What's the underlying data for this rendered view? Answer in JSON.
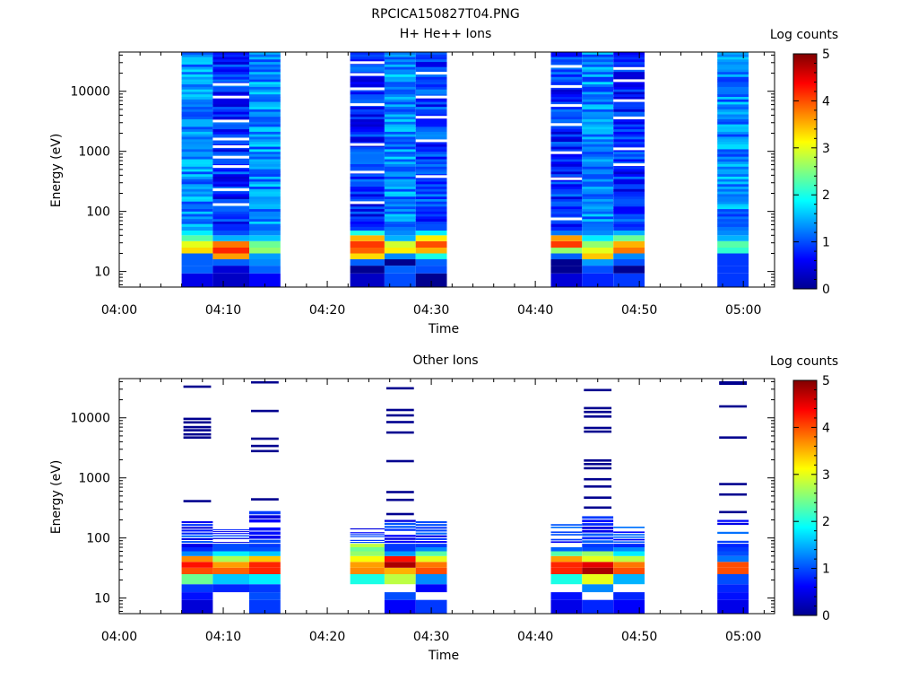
{
  "figure": {
    "title": "RPCICA150827T04.PNG"
  },
  "colorbar": {
    "label": "Log counts",
    "ticks": [
      "0",
      "1",
      "2",
      "3",
      "4",
      "5"
    ],
    "stops": [
      "#00008f",
      "#0000ff",
      "#0080ff",
      "#00ffff",
      "#80ff80",
      "#ffff00",
      "#ff8000",
      "#ff0000",
      "#800000"
    ]
  },
  "chart_data": [
    {
      "type": "heatmap",
      "title": "H+ He++ Ions",
      "xlabel": "Time",
      "ylabel": "Energy (eV)",
      "x_ticks": [
        "04:00",
        "04:10",
        "04:20",
        "04:30",
        "04:40",
        "04:50",
        "05:00"
      ],
      "xlim_minutes": [
        0,
        63
      ],
      "y_scale": "log",
      "ylim": [
        5.5,
        45000
      ],
      "y_ticks": [
        "10",
        "100",
        "1000",
        "10000"
      ],
      "clim": [
        0,
        5
      ],
      "time_bins": [
        {
          "start": 6,
          "end": 9,
          "low": [
            0.5,
            1.1,
            1.1,
            1.1,
            3.3,
            3.0,
            2.3,
            1.8,
            1.4
          ],
          "high": 1.3,
          "gaps": []
        },
        {
          "start": 9,
          "end": 12.5,
          "low": [
            0.3,
            0.4,
            1.1,
            3.6,
            4.2,
            3.8,
            1.5,
            1.0,
            0.8
          ],
          "high": 0.8,
          "gaps": [
            130,
            230,
            560,
            800,
            1200,
            1600,
            3200,
            8000,
            13000
          ]
        },
        {
          "start": 12.5,
          "end": 15.5,
          "low": [
            0.6,
            1.1,
            1.3,
            1.4,
            2.6,
            2.4,
            1.6,
            1.3,
            1.1
          ],
          "high": 1.3,
          "gaps": []
        },
        {
          "start": 22.2,
          "end": 25.5,
          "low": [
            0.3,
            0,
            1.1,
            3.3,
            3.9,
            4.1,
            3.5,
            2.0,
            0.9
          ],
          "high": 0.8,
          "gaps": [
            140,
            450,
            1300,
            6000,
            11000,
            19000,
            30000
          ]
        },
        {
          "start": 25.5,
          "end": 28.5,
          "low": [
            1.0,
            1.1,
            0,
            1.3,
            3.2,
            2.9,
            1.5,
            1.3,
            1.2
          ],
          "high": 1.3,
          "gaps": []
        },
        {
          "start": 28.5,
          "end": 31.5,
          "low": [
            0,
            1.0,
            1.1,
            2.0,
            3.5,
            4.0,
            3.2,
            1.8,
            1.0
          ],
          "high": 0.9,
          "gaps": [
            380,
            1500,
            3700,
            8000,
            20000
          ]
        },
        {
          "start": 41.5,
          "end": 44.5,
          "low": [
            0.4,
            0,
            0,
            1.1,
            2.6,
            4.1,
            3.6,
            1.2,
            0.8
          ],
          "high": 0.8,
          "gaps": [
            75,
            350,
            950,
            2800,
            5800,
            12000,
            26000
          ]
        },
        {
          "start": 44.5,
          "end": 47.5,
          "low": [
            0.8,
            1.0,
            1.4,
            3.4,
            3.0,
            2.6,
            1.8,
            1.3,
            1.2
          ],
          "high": 1.3,
          "gaps": []
        },
        {
          "start": 47.5,
          "end": 50.5,
          "low": [
            0.9,
            0,
            1.0,
            1.3,
            3.8,
            3.5,
            2.4,
            1.5,
            0.9
          ],
          "high": 0.8,
          "gaps": [
            600,
            1100,
            3600,
            7000,
            15000,
            24000
          ]
        },
        {
          "start": 57.5,
          "end": 60.5,
          "low": [
            0.9,
            0.9,
            0.9,
            0.9,
            2.1,
            2.3,
            1.5,
            1.3,
            1.2
          ],
          "high": 1.3,
          "gaps": []
        }
      ]
    },
    {
      "type": "heatmap",
      "title": "Other Ions",
      "xlabel": "Time",
      "ylabel": "Energy (eV)",
      "x_ticks": [
        "04:00",
        "04:10",
        "04:20",
        "04:30",
        "04:40",
        "04:50",
        "05:00"
      ],
      "xlim_minutes": [
        0,
        63
      ],
      "y_scale": "log",
      "ylim": [
        5.5,
        45000
      ],
      "y_ticks": [
        "10",
        "100",
        "1000",
        "10000"
      ],
      "clim": [
        0,
        5
      ],
      "time_bins": [
        {
          "start": 6,
          "end": 9,
          "low": [
            0.4,
            0.7,
            0.9,
            2.4,
            4.0,
            4.3,
            3.7,
            1.3,
            0.8,
            0.5
          ],
          "top": 190,
          "lines": [
            410,
            4700,
            5300,
            6200,
            7000,
            8400,
            9600,
            33000
          ]
        },
        {
          "start": 9,
          "end": 12.5,
          "low": [
            null,
            null,
            0.8,
            1.6,
            3.9,
            3.6,
            2.7,
            1.8,
            1.0,
            1.0
          ],
          "top": 140,
          "lines": []
        },
        {
          "start": 12.5,
          "end": 15.5,
          "low": [
            0.9,
            1.0,
            0.9,
            1.8,
            4.2,
            4.2,
            3.4,
            1.6,
            1.0,
            0.9
          ],
          "top": 280,
          "lines": [
            440,
            2800,
            3400,
            4500,
            13000,
            39000
          ]
        },
        {
          "start": 22.2,
          "end": 25.5,
          "low": [
            null,
            null,
            null,
            2.0,
            3.7,
            3.6,
            3.1,
            2.6,
            2.4,
            2.8
          ],
          "top": 145,
          "lines": []
        },
        {
          "start": 25.5,
          "end": 28.5,
          "low": [
            0.6,
            1.0,
            null,
            2.8,
            3.5,
            4.8,
            4.3,
            1.4,
            0.9,
            0.9
          ],
          "top": 200,
          "lines": [
            250,
            430,
            580,
            1900,
            5700,
            8500,
            11000,
            13500,
            31000
          ]
        },
        {
          "start": 28.5,
          "end": 31.5,
          "low": [
            0.9,
            null,
            0.6,
            1.3,
            4.0,
            3.8,
            3.0,
            2.3,
            1.3,
            0.9
          ],
          "top": 190,
          "lines": []
        },
        {
          "start": 41.5,
          "end": 44.5,
          "low": [
            0.5,
            0.7,
            null,
            2.0,
            4.2,
            4.2,
            3.6,
            2.3,
            1.1,
            null
          ],
          "top": 170,
          "lines": []
        },
        {
          "start": 44.5,
          "end": 47.5,
          "low": [
            0.8,
            null,
            1.3,
            3.0,
            4.8,
            4.5,
            3.0,
            2.6,
            1.0,
            0.9
          ],
          "top": 230,
          "lines": [
            320,
            470,
            720,
            950,
            1450,
            1700,
            1950,
            5900,
            6800,
            10500,
            12500,
            14500,
            29000
          ]
        },
        {
          "start": 47.5,
          "end": 50.5,
          "low": [
            0.6,
            0.8,
            null,
            1.5,
            4.0,
            3.8,
            2.8,
            1.8,
            1.3,
            0.8
          ],
          "top": 170,
          "lines": []
        },
        {
          "start": 57.5,
          "end": 60.5,
          "low": [
            0.5,
            0.7,
            0.8,
            1.0,
            4.0,
            4.0,
            1.2,
            1.0,
            0.9,
            0.8
          ],
          "top": 200,
          "lines": [
            270,
            530,
            790,
            4700,
            15500,
            37000,
            39000
          ]
        }
      ]
    }
  ]
}
